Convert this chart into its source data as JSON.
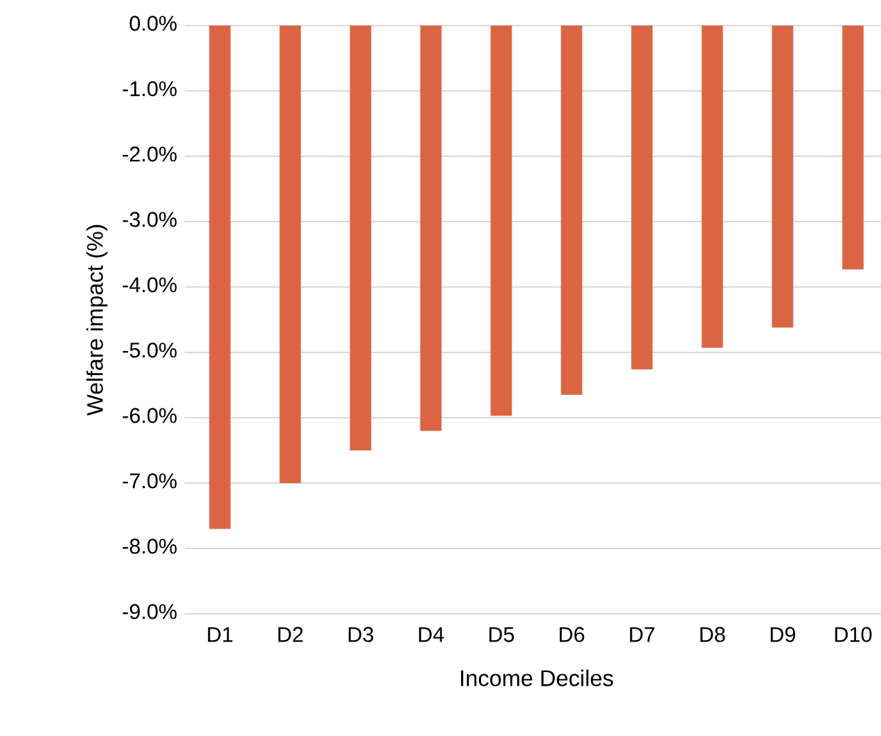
{
  "chart_data": {
    "type": "bar",
    "xlabel": "Income Deciles",
    "ylabel": "Welfare impact (%)",
    "categories": [
      "D1",
      "D2",
      "D3",
      "D4",
      "D5",
      "D6",
      "D7",
      "D8",
      "D9",
      "D10"
    ],
    "values": [
      -7.7,
      -7.0,
      -6.5,
      -6.2,
      -5.97,
      -5.65,
      -5.26,
      -4.93,
      -4.62,
      -3.73
    ],
    "color": "#db6543",
    "ylim": [
      -9,
      0
    ],
    "yticks": [
      {
        "value": 0,
        "label": "0.0%"
      },
      {
        "value": -1,
        "label": "-1.0%"
      },
      {
        "value": -2,
        "label": "-2.0%"
      },
      {
        "value": -3,
        "label": "-3.0%"
      },
      {
        "value": -4,
        "label": "-4.0%"
      },
      {
        "value": -5,
        "label": "-5.0%"
      },
      {
        "value": -6,
        "label": "-6.0%"
      },
      {
        "value": -7,
        "label": "-7.0%"
      },
      {
        "value": -8,
        "label": "-8.0%"
      },
      {
        "value": -9,
        "label": "-9.0%"
      }
    ],
    "grid": "y"
  }
}
